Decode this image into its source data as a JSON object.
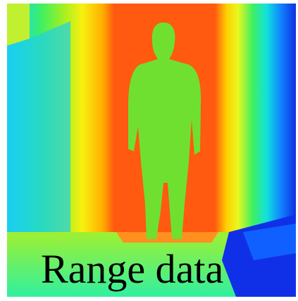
{
  "caption": "Range data"
}
